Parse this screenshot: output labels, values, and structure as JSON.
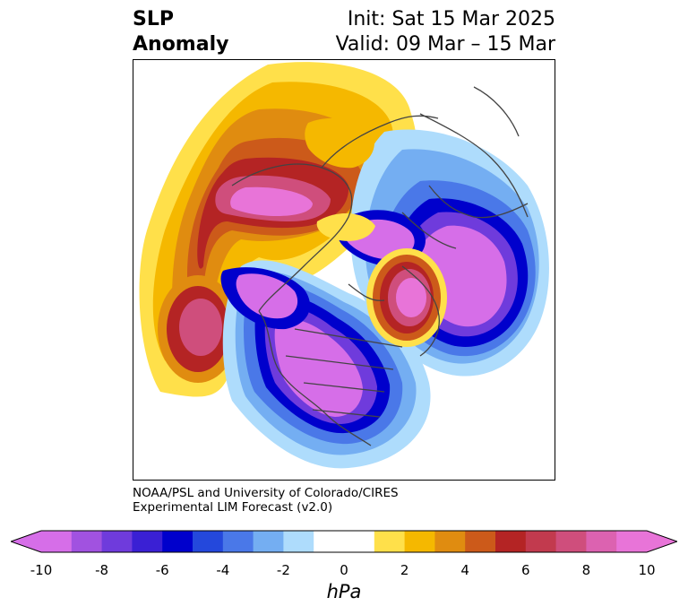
{
  "title": {
    "left_line1": "SLP",
    "left_line2": "Anomaly",
    "right_line1": "Init: Sat 15 Mar 2025",
    "right_line2": "Valid: 09 Mar – 15 Mar"
  },
  "credit": {
    "line1": "NOAA/PSL and University of Colorado/CIRES",
    "line2": "Experimental LIM Forecast (v2.0)"
  },
  "colorbar": {
    "unit": "hPa",
    "ticks": [
      "-10",
      "-8",
      "-6",
      "-4",
      "-2",
      "0",
      "2",
      "4",
      "6",
      "8",
      "10"
    ],
    "colors": [
      "#d66ee8",
      "#a152e0",
      "#6f3bdc",
      "#3a20d4",
      "#0000cc",
      "#2448dc",
      "#4a78e8",
      "#74aef2",
      "#aedcfc",
      "#ffffff",
      "#ffffff",
      "#ffe04a",
      "#f5b800",
      "#e08c10",
      "#cc5a1a",
      "#b42424",
      "#c23a4e",
      "#cf4e7c",
      "#dc62b0",
      "#e874d8"
    ]
  }
}
